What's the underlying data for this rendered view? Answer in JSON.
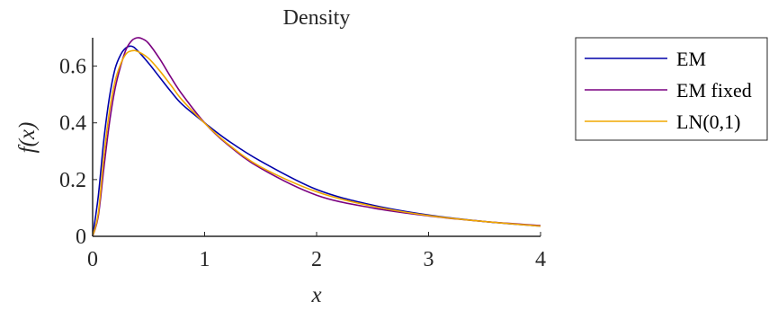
{
  "chart_data": {
    "type": "line",
    "title": "Density",
    "xlabel": "x",
    "ylabel": "f(x)",
    "xlim": [
      0,
      4
    ],
    "ylim": [
      0,
      0.7
    ],
    "xticks": [
      0,
      1,
      2,
      3,
      4
    ],
    "xtick_labels": [
      "0",
      "1",
      "2",
      "3",
      "4"
    ],
    "yticks": [
      0,
      0.2,
      0.4,
      0.6
    ],
    "ytick_labels": [
      "0",
      "0.2",
      "0.4",
      "0.6"
    ],
    "grid": false,
    "legend": "outside-right-top",
    "series": [
      {
        "name": "EM",
        "color": "#0000aa",
        "x": [
          0,
          0.05,
          0.1,
          0.15,
          0.2,
          0.25,
          0.3,
          0.35,
          0.4,
          0.5,
          0.6,
          0.7,
          0.8,
          1.0,
          1.2,
          1.5,
          2.0,
          2.5,
          3.0,
          3.5,
          4.0
        ],
        "y": [
          0,
          0.14,
          0.34,
          0.49,
          0.59,
          0.64,
          0.665,
          0.67,
          0.655,
          0.61,
          0.56,
          0.51,
          0.465,
          0.4,
          0.34,
          0.265,
          0.165,
          0.11,
          0.075,
          0.052,
          0.036
        ]
      },
      {
        "name": "EM fixed",
        "color": "#7a0080",
        "x": [
          0,
          0.05,
          0.1,
          0.15,
          0.2,
          0.25,
          0.3,
          0.35,
          0.4,
          0.45,
          0.5,
          0.6,
          0.7,
          0.8,
          1.0,
          1.2,
          1.5,
          2.0,
          2.5,
          3.0,
          3.5,
          4.0
        ],
        "y": [
          0,
          0.07,
          0.24,
          0.4,
          0.52,
          0.6,
          0.66,
          0.69,
          0.7,
          0.695,
          0.68,
          0.625,
          0.56,
          0.5,
          0.4,
          0.325,
          0.24,
          0.145,
          0.1,
          0.072,
          0.052,
          0.038
        ]
      },
      {
        "name": "LN(0,1)",
        "color": "#f0a800",
        "x": [
          0,
          0.05,
          0.1,
          0.15,
          0.2,
          0.25,
          0.3,
          0.35,
          0.4,
          0.5,
          0.6,
          0.7,
          0.8,
          1.0,
          1.2,
          1.5,
          2.0,
          2.5,
          3.0,
          3.5,
          4.0
        ],
        "y": [
          0,
          0.08,
          0.28,
          0.44,
          0.546,
          0.607,
          0.644,
          0.654,
          0.652,
          0.627,
          0.583,
          0.532,
          0.48,
          0.399,
          0.328,
          0.245,
          0.157,
          0.106,
          0.073,
          0.052,
          0.036
        ]
      }
    ]
  }
}
